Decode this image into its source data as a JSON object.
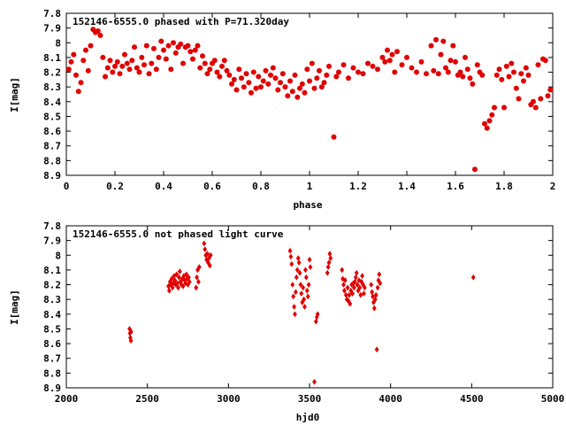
{
  "chart_data": [
    {
      "type": "scatter",
      "title": "152146-6555.0 phased with P=71.320day",
      "xlabel": "phase",
      "ylabel": "I[mag]",
      "xlim": [
        0,
        2
      ],
      "ylim": [
        7.8,
        8.9
      ],
      "y_inverted": true,
      "x_ticks": [
        "0",
        "0.2",
        "0.4",
        "0.6",
        "0.8",
        "1",
        "1.2",
        "1.4",
        "1.6",
        "1.8",
        "2"
      ],
      "y_ticks": [
        "7.8",
        "7.9",
        "8",
        "8.1",
        "8.2",
        "8.3",
        "8.4",
        "8.5",
        "8.6",
        "8.7",
        "8.8",
        "8.9"
      ],
      "color": "#e00000",
      "marker": "filled circle",
      "points": [
        [
          0.01,
          8.18
        ],
        [
          0.02,
          8.13
        ],
        [
          0.03,
          8.08
        ],
        [
          0.04,
          8.22
        ],
        [
          0.05,
          8.33
        ],
        [
          0.06,
          8.27
        ],
        [
          0.07,
          8.12
        ],
        [
          0.08,
          8.05
        ],
        [
          0.09,
          8.19
        ],
        [
          0.1,
          8.02
        ],
        [
          0.11,
          7.91
        ],
        [
          0.12,
          7.93
        ],
        [
          0.13,
          7.92
        ],
        [
          0.14,
          7.95
        ],
        [
          0.15,
          8.1
        ],
        [
          0.16,
          8.23
        ],
        [
          0.17,
          8.17
        ],
        [
          0.18,
          8.12
        ],
        [
          0.19,
          8.2
        ],
        [
          0.2,
          8.16
        ],
        [
          0.21,
          8.13
        ],
        [
          0.22,
          8.21
        ],
        [
          0.23,
          8.16
        ],
        [
          0.24,
          8.08
        ],
        [
          0.25,
          8.14
        ],
        [
          0.26,
          8.18
        ],
        [
          0.27,
          8.12
        ],
        [
          0.28,
          8.03
        ],
        [
          0.29,
          8.17
        ],
        [
          0.3,
          8.2
        ],
        [
          0.31,
          8.1
        ],
        [
          0.32,
          8.15
        ],
        [
          0.33,
          8.02
        ],
        [
          0.34,
          8.21
        ],
        [
          0.35,
          8.14
        ],
        [
          0.36,
          8.04
        ],
        [
          0.37,
          8.18
        ],
        [
          0.38,
          8.1
        ],
        [
          0.39,
          7.99
        ],
        [
          0.4,
          8.05
        ],
        [
          0.41,
          8.11
        ],
        [
          0.42,
          8.02
        ],
        [
          0.43,
          8.18
        ],
        [
          0.44,
          8.0
        ],
        [
          0.45,
          8.07
        ],
        [
          0.46,
          8.03
        ],
        [
          0.47,
          8.01
        ],
        [
          0.48,
          8.14
        ],
        [
          0.49,
          8.03
        ],
        [
          0.5,
          8.02
        ],
        [
          0.51,
          8.06
        ],
        [
          0.52,
          8.11
        ],
        [
          0.53,
          8.05
        ],
        [
          0.54,
          8.02
        ],
        [
          0.55,
          8.17
        ],
        [
          0.56,
          8.09
        ],
        [
          0.57,
          8.14
        ],
        [
          0.58,
          8.21
        ],
        [
          0.59,
          8.18
        ],
        [
          0.6,
          8.14
        ],
        [
          0.61,
          8.12
        ],
        [
          0.62,
          8.2
        ],
        [
          0.63,
          8.23
        ],
        [
          0.64,
          8.16
        ],
        [
          0.65,
          8.12
        ],
        [
          0.66,
          8.19
        ],
        [
          0.67,
          8.22
        ],
        [
          0.68,
          8.28
        ],
        [
          0.69,
          8.25
        ],
        [
          0.7,
          8.32
        ],
        [
          0.71,
          8.18
        ],
        [
          0.72,
          8.24
        ],
        [
          0.73,
          8.3
        ],
        [
          0.74,
          8.21
        ],
        [
          0.75,
          8.27
        ],
        [
          0.76,
          8.34
        ],
        [
          0.77,
          8.2
        ],
        [
          0.78,
          8.31
        ],
        [
          0.79,
          8.23
        ],
        [
          0.8,
          8.3
        ],
        [
          0.81,
          8.26
        ],
        [
          0.82,
          8.19
        ],
        [
          0.83,
          8.28
        ],
        [
          0.84,
          8.22
        ],
        [
          0.85,
          8.17
        ],
        [
          0.86,
          8.24
        ],
        [
          0.87,
          8.32
        ],
        [
          0.88,
          8.27
        ],
        [
          0.89,
          8.21
        ],
        [
          0.9,
          8.3
        ],
        [
          0.91,
          8.36
        ],
        [
          0.92,
          8.26
        ],
        [
          0.93,
          8.33
        ],
        [
          0.94,
          8.22
        ],
        [
          0.95,
          8.37
        ],
        [
          0.96,
          8.31
        ],
        [
          0.97,
          8.28
        ],
        [
          0.98,
          8.34
        ],
        [
          0.99,
          8.18
        ],
        [
          1.0,
          8.26
        ],
        [
          1.01,
          8.14
        ],
        [
          1.02,
          8.31
        ],
        [
          1.03,
          8.24
        ],
        [
          1.04,
          8.19
        ],
        [
          1.05,
          8.3
        ],
        [
          1.06,
          8.27
        ],
        [
          1.07,
          8.22
        ],
        [
          1.08,
          8.16
        ],
        [
          1.1,
          8.64
        ],
        [
          1.11,
          8.23
        ],
        [
          1.12,
          8.2
        ],
        [
          1.14,
          8.15
        ],
        [
          1.16,
          8.24
        ],
        [
          1.18,
          8.17
        ],
        [
          1.2,
          8.2
        ],
        [
          1.22,
          8.21
        ],
        [
          1.24,
          8.14
        ],
        [
          1.26,
          8.16
        ],
        [
          1.28,
          8.18
        ],
        [
          1.3,
          8.1
        ],
        [
          1.31,
          8.13
        ],
        [
          1.32,
          8.05
        ],
        [
          1.33,
          8.12
        ],
        [
          1.34,
          8.08
        ],
        [
          1.35,
          8.2
        ],
        [
          1.36,
          8.06
        ],
        [
          1.38,
          8.15
        ],
        [
          1.4,
          8.1
        ],
        [
          1.42,
          8.17
        ],
        [
          1.44,
          8.2
        ],
        [
          1.46,
          8.13
        ],
        [
          1.48,
          8.21
        ],
        [
          1.5,
          8.02
        ],
        [
          1.51,
          8.19
        ],
        [
          1.52,
          7.98
        ],
        [
          1.53,
          8.21
        ],
        [
          1.54,
          8.08
        ],
        [
          1.55,
          7.99
        ],
        [
          1.56,
          8.17
        ],
        [
          1.57,
          8.2
        ],
        [
          1.58,
          8.12
        ],
        [
          1.59,
          8.02
        ],
        [
          1.6,
          8.13
        ],
        [
          1.61,
          8.22
        ],
        [
          1.62,
          8.2
        ],
        [
          1.63,
          8.23
        ],
        [
          1.64,
          8.1
        ],
        [
          1.65,
          8.18
        ],
        [
          1.66,
          8.24
        ],
        [
          1.67,
          8.28
        ],
        [
          1.68,
          8.86
        ],
        [
          1.69,
          8.15
        ],
        [
          1.7,
          8.2
        ],
        [
          1.71,
          8.22
        ],
        [
          1.72,
          8.55
        ],
        [
          1.73,
          8.58
        ],
        [
          1.74,
          8.53
        ],
        [
          1.75,
          8.49
        ],
        [
          1.76,
          8.44
        ],
        [
          1.77,
          8.22
        ],
        [
          1.78,
          8.18
        ],
        [
          1.79,
          8.25
        ],
        [
          1.8,
          8.44
        ],
        [
          1.81,
          8.16
        ],
        [
          1.82,
          8.23
        ],
        [
          1.83,
          8.14
        ],
        [
          1.84,
          8.2
        ],
        [
          1.85,
          8.31
        ],
        [
          1.86,
          8.38
        ],
        [
          1.87,
          8.21
        ],
        [
          1.88,
          8.26
        ],
        [
          1.89,
          8.17
        ],
        [
          1.9,
          8.22
        ],
        [
          1.91,
          8.42
        ],
        [
          1.92,
          8.4
        ],
        [
          1.93,
          8.44
        ],
        [
          1.94,
          8.15
        ],
        [
          1.95,
          8.38
        ],
        [
          1.96,
          8.11
        ],
        [
          1.97,
          8.12
        ],
        [
          1.98,
          8.36
        ],
        [
          1.99,
          8.32
        ]
      ]
    },
    {
      "type": "scatter",
      "title": "152146-6555.0 not phased light curve",
      "xlabel": "hjd0",
      "ylabel": "I[mag]",
      "xlim": [
        2000,
        5000
      ],
      "ylim": [
        7.8,
        8.9
      ],
      "y_inverted": true,
      "x_ticks": [
        "2000",
        "2500",
        "3000",
        "3500",
        "4000",
        "4500",
        "5000"
      ],
      "y_ticks": [
        "7.8",
        "7.9",
        "8",
        "8.1",
        "8.2",
        "8.3",
        "8.4",
        "8.5",
        "8.6",
        "8.7",
        "8.8",
        "8.9"
      ],
      "color": "#e00000",
      "marker": "small filled diamond",
      "points": [
        [
          2390,
          8.5
        ],
        [
          2392,
          8.53
        ],
        [
          2395,
          8.56
        ],
        [
          2398,
          8.58
        ],
        [
          2400,
          8.52
        ],
        [
          2630,
          8.21
        ],
        [
          2635,
          8.24
        ],
        [
          2640,
          8.18
        ],
        [
          2645,
          8.2
        ],
        [
          2650,
          8.16
        ],
        [
          2655,
          8.22
        ],
        [
          2660,
          8.19
        ],
        [
          2665,
          8.14
        ],
        [
          2670,
          8.17
        ],
        [
          2675,
          8.2
        ],
        [
          2680,
          8.13
        ],
        [
          2685,
          8.19
        ],
        [
          2690,
          8.22
        ],
        [
          2695,
          8.15
        ],
        [
          2700,
          8.11
        ],
        [
          2705,
          8.18
        ],
        [
          2710,
          8.2
        ],
        [
          2715,
          8.16
        ],
        [
          2720,
          8.21
        ],
        [
          2725,
          8.14
        ],
        [
          2730,
          8.17
        ],
        [
          2735,
          8.19
        ],
        [
          2740,
          8.13
        ],
        [
          2745,
          8.16
        ],
        [
          2750,
          8.2
        ],
        [
          2755,
          8.15
        ],
        [
          2760,
          8.18
        ],
        [
          2800,
          8.22
        ],
        [
          2805,
          8.15
        ],
        [
          2810,
          8.1
        ],
        [
          2815,
          8.18
        ],
        [
          2820,
          8.08
        ],
        [
          2850,
          7.92
        ],
        [
          2855,
          7.96
        ],
        [
          2860,
          8.0
        ],
        [
          2865,
          8.03
        ],
        [
          2870,
          7.99
        ],
        [
          2875,
          8.05
        ],
        [
          2880,
          8.02
        ],
        [
          2885,
          8.07
        ],
        [
          2890,
          8.0
        ],
        [
          3380,
          7.97
        ],
        [
          3385,
          8.01
        ],
        [
          3390,
          8.06
        ],
        [
          3395,
          8.2
        ],
        [
          3400,
          8.28
        ],
        [
          3405,
          8.35
        ],
        [
          3410,
          8.4
        ],
        [
          3415,
          8.25
        ],
        [
          3420,
          8.15
        ],
        [
          3425,
          8.1
        ],
        [
          3430,
          8.02
        ],
        [
          3435,
          8.05
        ],
        [
          3440,
          8.12
        ],
        [
          3445,
          8.2
        ],
        [
          3450,
          8.26
        ],
        [
          3455,
          8.32
        ],
        [
          3460,
          8.22
        ],
        [
          3465,
          8.3
        ],
        [
          3470,
          8.35
        ],
        [
          3475,
          8.1
        ],
        [
          3480,
          8.15
        ],
        [
          3485,
          8.24
        ],
        [
          3490,
          8.28
        ],
        [
          3495,
          8.2
        ],
        [
          3500,
          8.03
        ],
        [
          3505,
          8.08
        ],
        [
          3530,
          8.86
        ],
        [
          3540,
          8.45
        ],
        [
          3545,
          8.42
        ],
        [
          3550,
          8.4
        ],
        [
          3610,
          8.12
        ],
        [
          3615,
          8.08
        ],
        [
          3620,
          8.05
        ],
        [
          3625,
          7.99
        ],
        [
          3630,
          8.02
        ],
        [
          3700,
          8.1
        ],
        [
          3705,
          8.16
        ],
        [
          3710,
          8.2
        ],
        [
          3715,
          8.24
        ],
        [
          3720,
          8.17
        ],
        [
          3725,
          8.27
        ],
        [
          3730,
          8.3
        ],
        [
          3735,
          8.22
        ],
        [
          3740,
          8.31
        ],
        [
          3745,
          8.27
        ],
        [
          3750,
          8.33
        ],
        [
          3755,
          8.24
        ],
        [
          3760,
          8.2
        ],
        [
          3765,
          8.26
        ],
        [
          3770,
          8.19
        ],
        [
          3775,
          8.22
        ],
        [
          3780,
          8.18
        ],
        [
          3785,
          8.15
        ],
        [
          3790,
          8.12
        ],
        [
          3795,
          8.2
        ],
        [
          3800,
          8.24
        ],
        [
          3805,
          8.17
        ],
        [
          3810,
          8.22
        ],
        [
          3815,
          8.27
        ],
        [
          3820,
          8.18
        ],
        [
          3825,
          8.14
        ],
        [
          3830,
          8.2
        ],
        [
          3835,
          8.26
        ],
        [
          3840,
          8.22
        ],
        [
          3880,
          8.2
        ],
        [
          3885,
          8.25
        ],
        [
          3890,
          8.28
        ],
        [
          3895,
          8.32
        ],
        [
          3900,
          8.36
        ],
        [
          3905,
          8.3
        ],
        [
          3910,
          8.27
        ],
        [
          3915,
          8.64
        ],
        [
          3920,
          8.22
        ],
        [
          3925,
          8.17
        ],
        [
          3930,
          8.13
        ],
        [
          3935,
          8.19
        ],
        [
          4510,
          8.15
        ]
      ]
    }
  ]
}
